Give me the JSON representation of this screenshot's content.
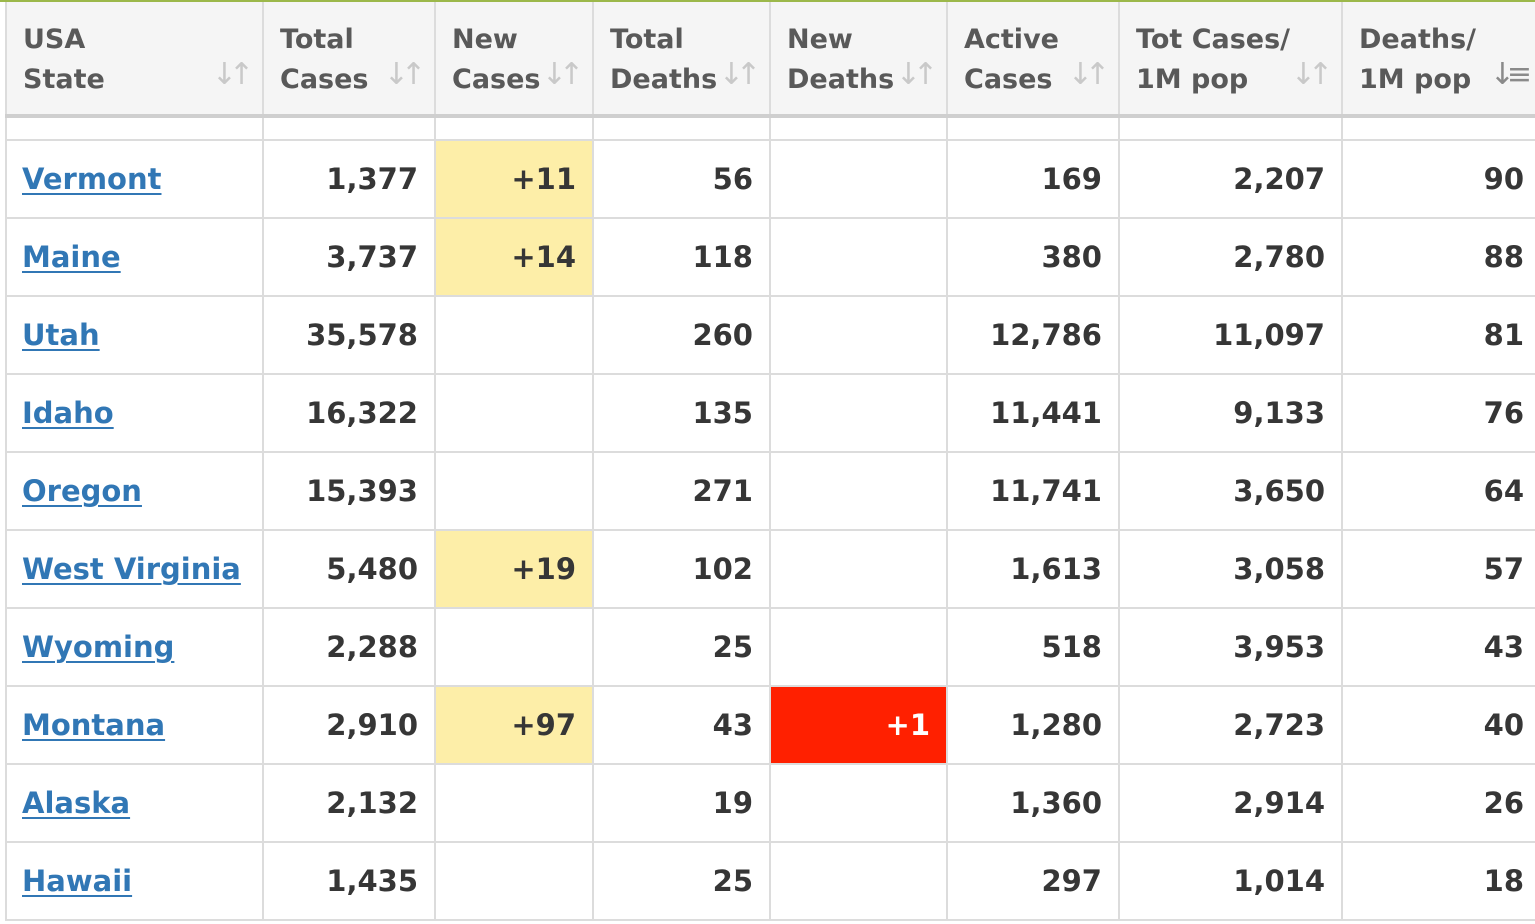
{
  "header": {
    "columns": [
      {
        "label": "USA\nState",
        "icon": "sort-both-icon"
      },
      {
        "label": "Total\nCases",
        "icon": "sort-both-icon"
      },
      {
        "label": "New\nCases",
        "icon": "sort-both-icon"
      },
      {
        "label": "Total\nDeaths",
        "icon": "sort-both-icon"
      },
      {
        "label": "New\nDeaths",
        "icon": "sort-both-icon"
      },
      {
        "label": "Active\nCases",
        "icon": "sort-both-icon"
      },
      {
        "label": "Tot Cases/\n1M pop",
        "icon": "sort-both-icon"
      },
      {
        "label": "Deaths/\n1M pop",
        "icon": "sort-descending-icon"
      }
    ]
  },
  "colors": {
    "new_cases_highlight": "#fdeea8",
    "new_deaths_highlight": "#ff2000",
    "link": "#3177b5",
    "top_accent": "#9cb84a"
  },
  "rows": [
    {
      "state": "Vermont",
      "total_cases": "1,377",
      "new_cases": "+11",
      "total_deaths": "56",
      "new_deaths": "",
      "active_cases": "169",
      "cases_per_1m": "2,207",
      "deaths_per_1m": "90"
    },
    {
      "state": "Maine",
      "total_cases": "3,737",
      "new_cases": "+14",
      "total_deaths": "118",
      "new_deaths": "",
      "active_cases": "380",
      "cases_per_1m": "2,780",
      "deaths_per_1m": "88"
    },
    {
      "state": "Utah",
      "total_cases": "35,578",
      "new_cases": "",
      "total_deaths": "260",
      "new_deaths": "",
      "active_cases": "12,786",
      "cases_per_1m": "11,097",
      "deaths_per_1m": "81"
    },
    {
      "state": "Idaho",
      "total_cases": "16,322",
      "new_cases": "",
      "total_deaths": "135",
      "new_deaths": "",
      "active_cases": "11,441",
      "cases_per_1m": "9,133",
      "deaths_per_1m": "76"
    },
    {
      "state": "Oregon",
      "total_cases": "15,393",
      "new_cases": "",
      "total_deaths": "271",
      "new_deaths": "",
      "active_cases": "11,741",
      "cases_per_1m": "3,650",
      "deaths_per_1m": "64"
    },
    {
      "state": "West Virginia",
      "total_cases": "5,480",
      "new_cases": "+19",
      "total_deaths": "102",
      "new_deaths": "",
      "active_cases": "1,613",
      "cases_per_1m": "3,058",
      "deaths_per_1m": "57"
    },
    {
      "state": "Wyoming",
      "total_cases": "2,288",
      "new_cases": "",
      "total_deaths": "25",
      "new_deaths": "",
      "active_cases": "518",
      "cases_per_1m": "3,953",
      "deaths_per_1m": "43"
    },
    {
      "state": "Montana",
      "total_cases": "2,910",
      "new_cases": "+97",
      "total_deaths": "43",
      "new_deaths": "+1",
      "active_cases": "1,280",
      "cases_per_1m": "2,723",
      "deaths_per_1m": "40"
    },
    {
      "state": "Alaska",
      "total_cases": "2,132",
      "new_cases": "",
      "total_deaths": "19",
      "new_deaths": "",
      "active_cases": "1,360",
      "cases_per_1m": "2,914",
      "deaths_per_1m": "26"
    },
    {
      "state": "Hawaii",
      "total_cases": "1,435",
      "new_cases": "",
      "total_deaths": "25",
      "new_deaths": "",
      "active_cases": "297",
      "cases_per_1m": "1,014",
      "deaths_per_1m": "18"
    }
  ]
}
